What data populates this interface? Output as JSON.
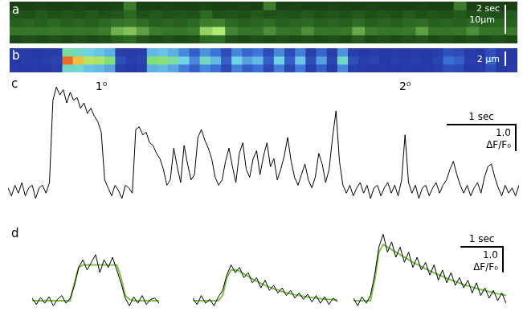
{
  "chart_data": [
    {
      "type": "heatmap",
      "title": "a",
      "value_range": [
        0,
        1
      ],
      "tick_labels": false,
      "scale_bar": {
        "labels": [
          "2 sec",
          "10µm"
        ]
      },
      "cells": [
        [
          0.12,
          0.12,
          0.13,
          0.12,
          0.12,
          0.13,
          0.12,
          0.12,
          0.13,
          0.3,
          0.12,
          0.12,
          0.13,
          0.12,
          0.12,
          0.13,
          0.12,
          0.12,
          0.13,
          0.12,
          0.3,
          0.12,
          0.13,
          0.12,
          0.12,
          0.13,
          0.12,
          0.12,
          0.13,
          0.12,
          0.12,
          0.12,
          0.13,
          0.12,
          0.12,
          0.3,
          0.12,
          0.12,
          0.13,
          0.12
        ],
        [
          0.16,
          0.15,
          0.17,
          0.15,
          0.16,
          0.15,
          0.17,
          0.15,
          0.16,
          0.2,
          0.15,
          0.17,
          0.15,
          0.16,
          0.15,
          0.2,
          0.15,
          0.16,
          0.15,
          0.17,
          0.15,
          0.16,
          0.15,
          0.17,
          0.15,
          0.16,
          0.15,
          0.17,
          0.15,
          0.16,
          0.15,
          0.17,
          0.15,
          0.16,
          0.15,
          0.17,
          0.15,
          0.16,
          0.15,
          0.17
        ],
        [
          0.18,
          0.19,
          0.18,
          0.2,
          0.18,
          0.19,
          0.18,
          0.2,
          0.25,
          0.28,
          0.22,
          0.18,
          0.19,
          0.18,
          0.2,
          0.3,
          0.32,
          0.2,
          0.18,
          0.19,
          0.22,
          0.18,
          0.19,
          0.2,
          0.18,
          0.19,
          0.18,
          0.22,
          0.18,
          0.19,
          0.18,
          0.2,
          0.22,
          0.18,
          0.19,
          0.18,
          0.2,
          0.18,
          0.19,
          0.18
        ],
        [
          0.26,
          0.27,
          0.26,
          0.28,
          0.26,
          0.27,
          0.26,
          0.3,
          0.6,
          0.7,
          0.5,
          0.3,
          0.27,
          0.26,
          0.3,
          0.8,
          0.95,
          0.35,
          0.27,
          0.26,
          0.4,
          0.27,
          0.26,
          0.4,
          0.27,
          0.26,
          0.28,
          0.55,
          0.3,
          0.27,
          0.26,
          0.28,
          0.5,
          0.27,
          0.26,
          0.28,
          0.4,
          0.27,
          0.26,
          0.28
        ],
        [
          0.14,
          0.15,
          0.14,
          0.15,
          0.14,
          0.15,
          0.14,
          0.15,
          0.18,
          0.2,
          0.16,
          0.14,
          0.15,
          0.14,
          0.15,
          0.2,
          0.22,
          0.15,
          0.14,
          0.15,
          0.14,
          0.15,
          0.14,
          0.15,
          0.14,
          0.15,
          0.14,
          0.17,
          0.14,
          0.15,
          0.14,
          0.15,
          0.16,
          0.14,
          0.15,
          0.14,
          0.15,
          0.14,
          0.15,
          0.14
        ]
      ]
    },
    {
      "type": "heatmap",
      "title": "b",
      "value_range": [
        0,
        1
      ],
      "tick_labels": false,
      "scale_bar": {
        "labels": [
          "2 µm"
        ]
      },
      "cells": [
        [
          0.08,
          0.09,
          0.08,
          0.09,
          0.1,
          0.55,
          0.5,
          0.45,
          0.42,
          0.38,
          0.1,
          0.09,
          0.1,
          0.4,
          0.42,
          0.38,
          0.3,
          0.2,
          0.32,
          0.26,
          0.14,
          0.3,
          0.22,
          0.26,
          0.14,
          0.3,
          0.14,
          0.28,
          0.1,
          0.22,
          0.1,
          0.32,
          0.1,
          0.08,
          0.1,
          0.08,
          0.09,
          0.08,
          0.09,
          0.08,
          0.1,
          0.16,
          0.14,
          0.09,
          0.08,
          0.15,
          0.09,
          0.08
        ],
        [
          0.08,
          0.1,
          0.09,
          0.1,
          0.12,
          0.95,
          0.85,
          0.7,
          0.68,
          0.6,
          0.15,
          0.1,
          0.12,
          0.6,
          0.62,
          0.55,
          0.45,
          0.3,
          0.5,
          0.4,
          0.2,
          0.45,
          0.35,
          0.4,
          0.2,
          0.45,
          0.2,
          0.42,
          0.15,
          0.35,
          0.12,
          0.5,
          0.15,
          0.1,
          0.12,
          0.08,
          0.1,
          0.09,
          0.1,
          0.08,
          0.12,
          0.25,
          0.2,
          0.1,
          0.09,
          0.22,
          0.1,
          0.08
        ],
        [
          0.09,
          0.08,
          0.09,
          0.08,
          0.1,
          0.5,
          0.48,
          0.42,
          0.4,
          0.36,
          0.1,
          0.08,
          0.1,
          0.38,
          0.4,
          0.36,
          0.28,
          0.2,
          0.3,
          0.25,
          0.13,
          0.28,
          0.2,
          0.25,
          0.13,
          0.28,
          0.13,
          0.27,
          0.1,
          0.2,
          0.09,
          0.3,
          0.1,
          0.09,
          0.08,
          0.09,
          0.08,
          0.09,
          0.08,
          0.09,
          0.1,
          0.15,
          0.13,
          0.08,
          0.09,
          0.14,
          0.08,
          0.09
        ]
      ]
    },
    {
      "type": "line",
      "title": "c",
      "color": "#000000",
      "xlim": [
        0,
        7.4
      ],
      "ylim": [
        -1,
        4.3
      ],
      "tick_labels": false,
      "grid": false,
      "annotations": [
        {
          "text": "1⁰",
          "x": 1.35,
          "y": 3.9
        },
        {
          "text": "2⁰",
          "x": 5.75,
          "y": 3.9
        }
      ],
      "scale_bar": {
        "x": 1,
        "x_label": "1 sec",
        "y": 1,
        "y_label": "1.0",
        "y_unit": "ΔF/F₀"
      },
      "x": [
        0,
        0.05,
        0.1,
        0.15,
        0.2,
        0.25,
        0.3,
        0.35,
        0.4,
        0.45,
        0.5,
        0.55,
        0.6,
        0.65,
        0.7,
        0.75,
        0.8,
        0.85,
        0.9,
        0.95,
        1,
        1.05,
        1.1,
        1.15,
        1.2,
        1.25,
        1.3,
        1.35,
        1.4,
        1.45,
        1.5,
        1.55,
        1.6,
        1.65,
        1.7,
        1.75,
        1.8,
        1.85,
        1.9,
        1.95,
        2,
        2.05,
        2.1,
        2.15,
        2.2,
        2.25,
        2.3,
        2.35,
        2.4,
        2.45,
        2.5,
        2.55,
        2.6,
        2.65,
        2.7,
        2.75,
        2.8,
        2.85,
        2.9,
        2.95,
        3,
        3.05,
        3.1,
        3.15,
        3.2,
        3.25,
        3.3,
        3.35,
        3.4,
        3.45,
        3.5,
        3.55,
        3.6,
        3.65,
        3.7,
        3.75,
        3.8,
        3.85,
        3.9,
        3.95,
        4,
        4.05,
        4.1,
        4.15,
        4.2,
        4.25,
        4.3,
        4.35,
        4.4,
        4.45,
        4.5,
        4.55,
        4.6,
        4.65,
        4.7,
        4.75,
        4.8,
        4.85,
        4.9,
        4.95,
        5,
        5.05,
        5.1,
        5.15,
        5.2,
        5.25,
        5.3,
        5.35,
        5.4,
        5.45,
        5.5,
        5.55,
        5.6,
        5.65,
        5.7,
        5.75,
        5.8,
        5.85,
        5.9,
        5.95,
        6,
        6.05,
        6.1,
        6.15,
        6.2,
        6.25,
        6.3,
        6.35,
        6.4,
        6.45,
        6.5,
        6.55,
        6.6,
        6.65,
        6.7,
        6.75,
        6.8,
        6.85,
        6.9,
        6.95,
        7,
        7.05,
        7.1,
        7.15,
        7.2,
        7.25,
        7.3,
        7.35,
        7.4
      ],
      "values": [
        0.1,
        -0.2,
        0.2,
        -0.1,
        0.3,
        -0.2,
        0.1,
        0.2,
        -0.3,
        0.1,
        0.2,
        -0.1,
        0.3,
        3.4,
        3.9,
        3.6,
        3.8,
        3.3,
        3.7,
        3.4,
        3.5,
        3.1,
        3.3,
        2.9,
        3.1,
        2.8,
        2.6,
        2.2,
        0.4,
        0.1,
        -0.2,
        0.2,
        0,
        -0.3,
        0.2,
        0.1,
        -0.1,
        2.3,
        2.4,
        2.1,
        2.2,
        1.8,
        1.7,
        1.4,
        1.2,
        0.8,
        0.2,
        0.4,
        1.6,
        0.9,
        0.3,
        1.7,
        1.0,
        0.4,
        0.6,
        2.0,
        2.3,
        1.9,
        1.6,
        1.2,
        0.5,
        0.2,
        0.4,
        1.1,
        1.6,
        0.9,
        0.3,
        1.4,
        1.8,
        0.8,
        0.5,
        1.2,
        1.5,
        0.6,
        1.3,
        1.8,
        0.9,
        1.2,
        0.4,
        0.8,
        1.3,
        2.0,
        1.1,
        0.5,
        0.2,
        0.6,
        1.0,
        0.4,
        0.1,
        0.5,
        1.4,
        1.0,
        0.3,
        0.8,
        2.0,
        3.0,
        1.1,
        0.2,
        -0.1,
        0.2,
        -0.2,
        0.1,
        0.3,
        -0.1,
        0.2,
        -0.3,
        0.1,
        0.2,
        -0.2,
        0.1,
        0.3,
        -0.1,
        0.2,
        -0.2,
        0.4,
        2.1,
        0.3,
        -0.1,
        0.2,
        -0.3,
        0.1,
        0.2,
        -0.2,
        0.1,
        0.3,
        -0.1,
        0.2,
        0.4,
        0.8,
        1.1,
        0.6,
        0.2,
        -0.1,
        0.2,
        -0.2,
        0.1,
        0.3,
        -0.1,
        0.5,
        0.9,
        1.0,
        0.5,
        0.1,
        -0.2,
        0.2,
        -0.1,
        0.1,
        -0.2,
        0.2
      ]
    },
    {
      "type": "line",
      "title": "d",
      "xlim": [
        0,
        3
      ],
      "ylim": [
        -0.6,
        2.8
      ],
      "tick_labels": false,
      "grid": false,
      "x": [
        0,
        0.1,
        0.2,
        0.3,
        0.4,
        0.5,
        0.6,
        0.7,
        0.8,
        0.9,
        1,
        1.1,
        1.2,
        1.3,
        1.4,
        1.5,
        1.6,
        1.7,
        1.8,
        1.9,
        2,
        2.1,
        2.2,
        2.3,
        2.4,
        2.5,
        2.6,
        2.7,
        2.8,
        2.9,
        3
      ],
      "series": [
        {
          "color": "#000000",
          "values": [
            0.1,
            -0.15,
            0.12,
            -0.1,
            0.15,
            -0.2,
            0.05,
            0.2,
            -0.1,
            0.1,
            0.6,
            1.3,
            1.6,
            1.2,
            1.5,
            1.8,
            1.1,
            1.6,
            1.3,
            1.7,
            1.2,
            0.7,
            0.1,
            -0.2,
            0.15,
            -0.1,
            0.2,
            -0.15,
            0.05,
            0.1,
            -0.1
          ]
        },
        {
          "color": "#7cc242",
          "values": [
            0,
            0,
            0,
            0,
            0,
            0,
            0,
            0,
            0,
            0,
            0.7,
            1.3,
            1.4,
            1.4,
            1.4,
            1.4,
            1.4,
            1.4,
            1.4,
            1.4,
            1.4,
            0.9,
            0.2,
            0.05,
            0,
            0,
            0,
            0,
            0,
            0,
            0
          ]
        }
      ]
    },
    {
      "type": "line",
      "xlim": [
        0,
        3.4
      ],
      "ylim": [
        -0.6,
        2.8
      ],
      "tick_labels": false,
      "grid": false,
      "x": [
        0,
        0.1,
        0.2,
        0.3,
        0.4,
        0.5,
        0.6,
        0.7,
        0.8,
        0.9,
        1,
        1.1,
        1.2,
        1.3,
        1.4,
        1.5,
        1.6,
        1.7,
        1.8,
        1.9,
        2,
        2.1,
        2.2,
        2.3,
        2.4,
        2.5,
        2.6,
        2.7,
        2.8,
        2.9,
        3,
        3.1,
        3.2,
        3.3,
        3.4
      ],
      "series": [
        {
          "color": "#000000",
          "values": [
            0.1,
            -0.15,
            0.2,
            -0.1,
            0.05,
            -0.2,
            0.15,
            0.4,
            1.0,
            1.4,
            1.1,
            1.3,
            0.9,
            1.1,
            0.7,
            0.9,
            0.5,
            0.8,
            0.4,
            0.6,
            0.3,
            0.5,
            0.2,
            0.4,
            0.1,
            0.3,
            0.05,
            0.25,
            -0.05,
            0.2,
            -0.1,
            0.15,
            -0.15,
            0.1,
            -0.05
          ]
        },
        {
          "color": "#7cc242",
          "values": [
            0,
            0,
            0,
            0,
            0,
            0,
            0,
            0.2,
            0.9,
            1.2,
            1.2,
            1.15,
            1.05,
            0.95,
            0.85,
            0.76,
            0.68,
            0.6,
            0.53,
            0.47,
            0.41,
            0.36,
            0.31,
            0.27,
            0.23,
            0.2,
            0.17,
            0.14,
            0.12,
            0.1,
            0.08,
            0.06,
            0.05,
            0.04,
            0.03
          ]
        }
      ]
    },
    {
      "type": "line",
      "xlim": [
        0,
        3.6
      ],
      "ylim": [
        -0.6,
        2.8
      ],
      "tick_labels": false,
      "grid": false,
      "scale_bar": {
        "x": 1,
        "x_label": "1 sec",
        "y": 1,
        "y_label": "1.0",
        "y_unit": "ΔF/F₀"
      },
      "x": [
        0,
        0.1,
        0.2,
        0.3,
        0.4,
        0.5,
        0.6,
        0.7,
        0.8,
        0.9,
        1,
        1.1,
        1.2,
        1.3,
        1.4,
        1.5,
        1.6,
        1.7,
        1.8,
        1.9,
        2,
        2.1,
        2.2,
        2.3,
        2.4,
        2.5,
        2.6,
        2.7,
        2.8,
        2.9,
        3,
        3.1,
        3.2,
        3.3,
        3.4,
        3.5,
        3.6
      ],
      "series": [
        {
          "color": "#000000",
          "values": [
            0.1,
            -0.2,
            0.15,
            -0.1,
            0.2,
            1.0,
            2.1,
            2.6,
            1.9,
            2.3,
            1.7,
            2.1,
            1.5,
            1.9,
            1.3,
            1.7,
            1.2,
            1.5,
            1.0,
            1.4,
            0.8,
            1.2,
            0.7,
            1.1,
            0.6,
            0.9,
            0.5,
            0.8,
            0.3,
            0.7,
            0.2,
            0.5,
            0.1,
            0.4,
            0.0,
            0.3,
            -0.1
          ]
        },
        {
          "color": "#7cc242",
          "values": [
            0,
            0,
            0,
            0,
            0,
            0.8,
            1.9,
            2.2,
            2.1,
            2.0,
            1.9,
            1.8,
            1.7,
            1.6,
            1.5,
            1.42,
            1.33,
            1.25,
            1.17,
            1.09,
            1.02,
            0.95,
            0.88,
            0.81,
            0.75,
            0.69,
            0.63,
            0.58,
            0.53,
            0.48,
            0.43,
            0.39,
            0.35,
            0.31,
            0.27,
            0.24,
            0.2
          ]
        }
      ]
    }
  ]
}
